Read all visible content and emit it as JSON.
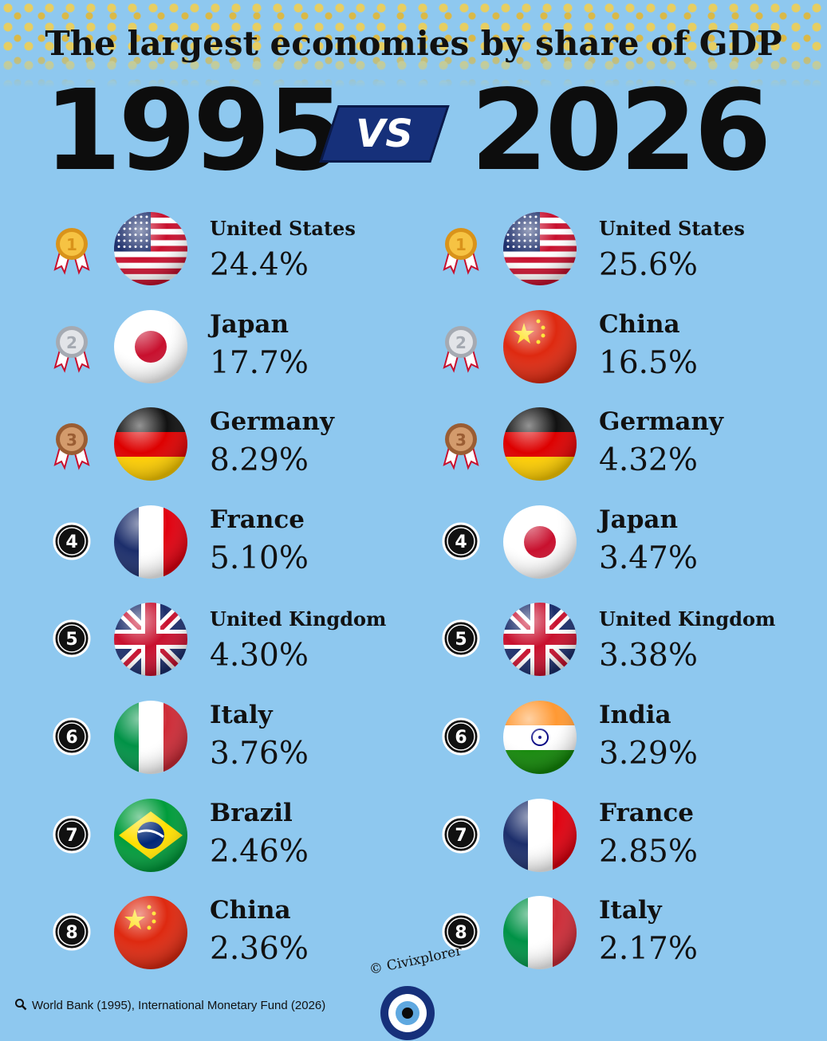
{
  "title": "The largest economies by share of GDP",
  "years": {
    "left": "1995",
    "vs": "VS",
    "right": "2026"
  },
  "columns": [
    {
      "year": "1995",
      "rows": [
        {
          "rank": "1",
          "country": "United States",
          "share": "24.4%",
          "flag": "us-flag"
        },
        {
          "rank": "2",
          "country": "Japan",
          "share": "17.7%",
          "flag": "japan-flag"
        },
        {
          "rank": "3",
          "country": "Germany",
          "share": "8.29%",
          "flag": "germany-flag"
        },
        {
          "rank": "4",
          "country": "France",
          "share": "5.10%",
          "flag": "france-flag"
        },
        {
          "rank": "5",
          "country": "United Kingdom",
          "share": "4.30%",
          "flag": "uk-flag"
        },
        {
          "rank": "6",
          "country": "Italy",
          "share": "3.76%",
          "flag": "italy-flag"
        },
        {
          "rank": "7",
          "country": "Brazil",
          "share": "2.46%",
          "flag": "brazil-flag"
        },
        {
          "rank": "8",
          "country": "China",
          "share": "2.36%",
          "flag": "china-flag"
        }
      ]
    },
    {
      "year": "2026",
      "rows": [
        {
          "rank": "1",
          "country": "United States",
          "share": "25.6%",
          "flag": "us-flag"
        },
        {
          "rank": "2",
          "country": "China",
          "share": "16.5%",
          "flag": "china-flag"
        },
        {
          "rank": "3",
          "country": "Germany",
          "share": "4.32%",
          "flag": "germany-flag"
        },
        {
          "rank": "4",
          "country": "Japan",
          "share": "3.47%",
          "flag": "japan-flag"
        },
        {
          "rank": "5",
          "country": "United Kingdom",
          "share": "3.38%",
          "flag": "uk-flag"
        },
        {
          "rank": "6",
          "country": "India",
          "share": "3.29%",
          "flag": "india-flag"
        },
        {
          "rank": "7",
          "country": "France",
          "share": "2.85%",
          "flag": "france-flag"
        },
        {
          "rank": "8",
          "country": "Italy",
          "share": "2.17%",
          "flag": "italy-flag"
        }
      ]
    }
  ],
  "chart_data": {
    "type": "table",
    "categories": [
      "1",
      "2",
      "3",
      "4",
      "5",
      "6",
      "7",
      "8"
    ],
    "series": [
      {
        "name": "1995",
        "countries": [
          "United States",
          "Japan",
          "Germany",
          "France",
          "United Kingdom",
          "Italy",
          "Brazil",
          "China"
        ],
        "values": [
          24.4,
          17.7,
          8.29,
          5.1,
          4.3,
          3.76,
          2.46,
          2.36
        ]
      },
      {
        "name": "2026",
        "countries": [
          "United States",
          "China",
          "Germany",
          "Japan",
          "United Kingdom",
          "India",
          "France",
          "Italy"
        ],
        "values": [
          25.6,
          16.5,
          4.32,
          3.47,
          3.38,
          3.29,
          2.85,
          2.17
        ]
      }
    ]
  },
  "colors": {
    "background": "#8ec8ef",
    "vs_box": "#16307a",
    "gold": "#f0b429",
    "silver": "#c9ccd1",
    "bronze": "#b9784a"
  },
  "footer": {
    "source": "World Bank (1995), International Monetary Fund (2026)",
    "source_icon": "search-icon",
    "credit": "© Civixplorer",
    "logo_icon": "eye-logo-icon"
  }
}
